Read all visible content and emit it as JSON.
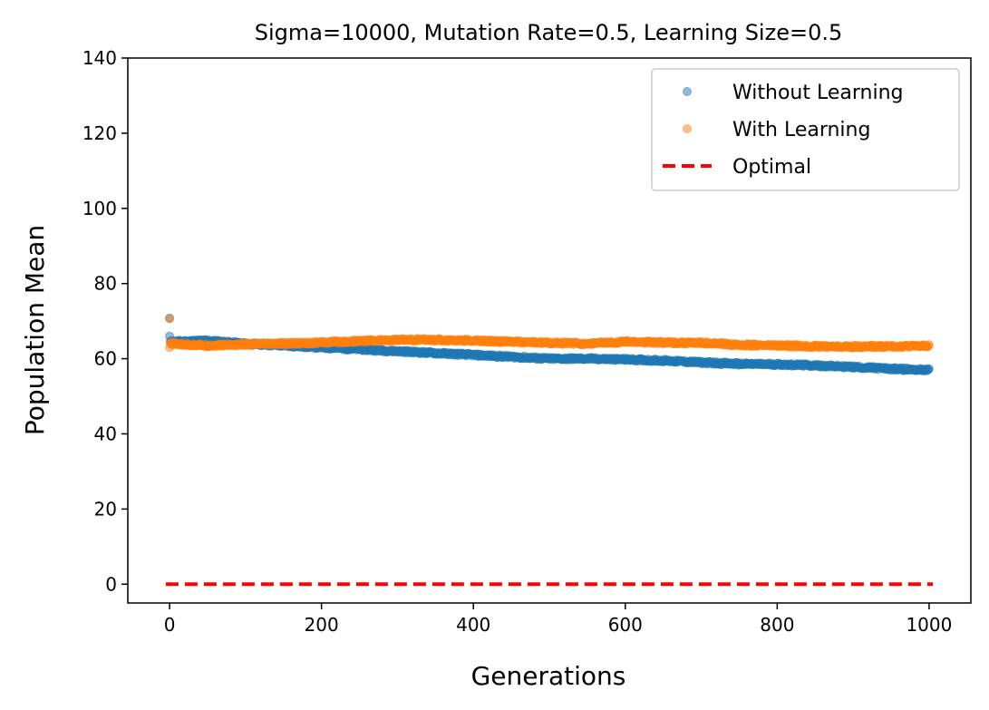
{
  "chart_data": {
    "type": "scatter",
    "title": "Sigma=10000, Mutation Rate=0.5, Learning Size=0.5",
    "xlabel": "Generations",
    "ylabel": "Population Mean",
    "xlim": [
      -55,
      1055
    ],
    "ylim": [
      -5,
      140
    ],
    "xticks": [
      0,
      200,
      400,
      600,
      800,
      1000
    ],
    "yticks": [
      0,
      20,
      40,
      60,
      80,
      100,
      120,
      140
    ],
    "legend_position": "upper-right",
    "grid": false,
    "series": [
      {
        "name": "Without Learning",
        "kind": "points",
        "color": "#1f77b4",
        "initial": [
          [
            0,
            70.8
          ],
          [
            0,
            66.0
          ]
        ],
        "trend": [
          [
            0,
            64.5
          ],
          [
            50,
            64.8
          ],
          [
            100,
            64.0
          ],
          [
            150,
            63.5
          ],
          [
            200,
            63.0
          ],
          [
            250,
            62.5
          ],
          [
            300,
            62.0
          ],
          [
            350,
            61.5
          ],
          [
            400,
            61.0
          ],
          [
            450,
            60.5
          ],
          [
            500,
            60.0
          ],
          [
            550,
            60.0
          ],
          [
            600,
            59.8
          ],
          [
            650,
            59.5
          ],
          [
            700,
            59.0
          ],
          [
            750,
            58.6
          ],
          [
            800,
            58.5
          ],
          [
            850,
            58.2
          ],
          [
            900,
            57.8
          ],
          [
            950,
            57.3
          ],
          [
            1000,
            57.0
          ]
        ]
      },
      {
        "name": "With Learning",
        "kind": "points",
        "color": "#ff7f0e",
        "initial": [
          [
            0,
            70.6
          ],
          [
            0,
            63.0
          ]
        ],
        "trend": [
          [
            0,
            64.0
          ],
          [
            50,
            63.5
          ],
          [
            100,
            63.8
          ],
          [
            150,
            64.0
          ],
          [
            200,
            64.3
          ],
          [
            250,
            64.7
          ],
          [
            300,
            65.0
          ],
          [
            350,
            65.0
          ],
          [
            400,
            64.8
          ],
          [
            450,
            64.5
          ],
          [
            500,
            64.2
          ],
          [
            550,
            64.0
          ],
          [
            600,
            64.5
          ],
          [
            650,
            64.3
          ],
          [
            700,
            64.2
          ],
          [
            750,
            63.7
          ],
          [
            800,
            63.5
          ],
          [
            850,
            63.3
          ],
          [
            900,
            63.2
          ],
          [
            950,
            63.3
          ],
          [
            1000,
            63.4
          ]
        ]
      },
      {
        "name": "Optimal",
        "kind": "dashed-line",
        "color": "#ff0000",
        "x": [
          -5,
          1005
        ],
        "values": [
          0,
          0
        ]
      }
    ]
  }
}
